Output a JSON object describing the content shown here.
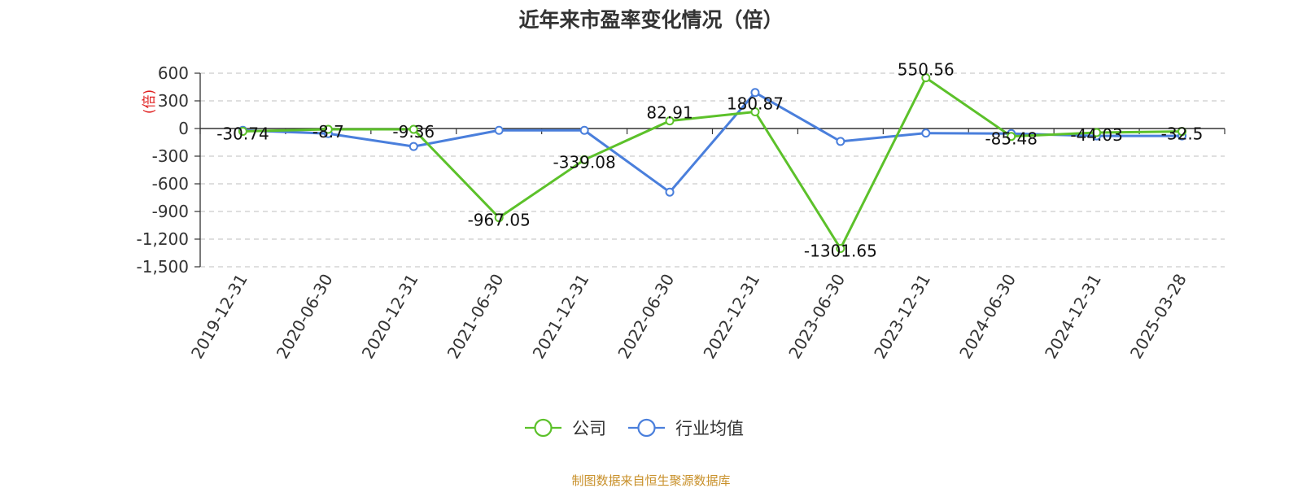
{
  "chart_data": {
    "type": "line",
    "title": "近年来市盈率变化情况（倍）",
    "ylabel": "(倍)",
    "xlabel": "",
    "ylim": [
      -1500,
      600
    ],
    "yticks": [
      600,
      300,
      0,
      -300,
      -600,
      -900,
      -1200,
      -1500
    ],
    "ytick_labels": [
      "600",
      "300",
      "0",
      "-300",
      "-600",
      "-900",
      "-1,200",
      "-1,500"
    ],
    "grid": true,
    "legend_position": "bottom-center",
    "categories": [
      "2019-12-31",
      "2020-06-30",
      "2020-12-31",
      "2021-06-30",
      "2021-12-31",
      "2022-06-30",
      "2022-12-31",
      "2023-06-30",
      "2023-12-31",
      "2024-06-30",
      "2024-12-31",
      "2025-03-28"
    ],
    "series": [
      {
        "name": "公司",
        "color": "#5cc12a",
        "values": [
          -30.74,
          -8.7,
          -9.36,
          -967.05,
          -339.08,
          82.91,
          180.87,
          -1301.65,
          550.56,
          -85.48,
          -44.03,
          -32.5
        ],
        "labels": [
          "-30.74",
          "-8.7",
          "-9.36",
          "-967.05",
          "-339.08",
          "82.91",
          "180.87",
          "-1301.65",
          "550.56",
          "-85.48",
          "-44.03",
          "-32.5"
        ]
      },
      {
        "name": "行业均值",
        "color": "#4a7fdc",
        "values": [
          -20,
          -55,
          -195,
          -20,
          -20,
          -690,
          390,
          -140,
          -50,
          -55,
          -80,
          -80
        ]
      }
    ]
  },
  "source_note": "制图数据来自恒生聚源数据库"
}
